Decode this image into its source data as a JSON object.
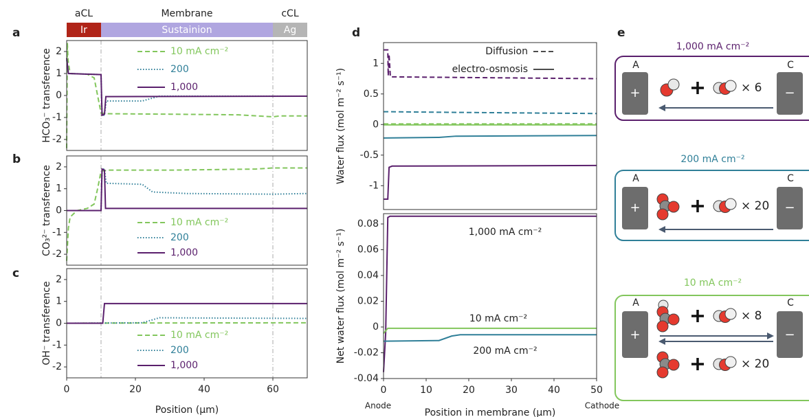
{
  "chart_data": [
    {
      "type": "line",
      "panel_label": "a",
      "y_label": "HCO₃⁻ transference",
      "xlim": [
        0,
        70
      ],
      "ylim": [
        -2.5,
        2.5
      ],
      "yticks": [
        -2,
        -1,
        0,
        1,
        2
      ],
      "legend": "upper center",
      "series": [
        {
          "name": "10 mA cm⁻²",
          "color": "#82c65c",
          "dash": "dashed",
          "x": [
            0,
            0.2,
            0.4,
            1,
            6,
            8,
            10,
            12,
            30,
            50,
            60,
            62,
            70
          ],
          "values": [
            -2.4,
            2.4,
            1.6,
            1.0,
            0.97,
            0.8,
            -0.8,
            -0.83,
            -0.85,
            -0.88,
            -0.97,
            -0.93,
            -0.93
          ]
        },
        {
          "name": "200",
          "color": "#2f7f98",
          "dash": "dotted",
          "x": [
            0,
            0.5,
            10,
            10.3,
            11,
            11.5,
            22,
            27,
            70
          ],
          "values": [
            1.6,
            1.0,
            0.95,
            -0.9,
            -0.9,
            -0.25,
            -0.25,
            -0.03,
            -0.03
          ]
        },
        {
          "name": "1,000",
          "color": "#5a1f6c",
          "dash": "solid",
          "x": [
            0,
            0.5,
            10,
            10.3,
            11,
            11.4,
            70
          ],
          "values": [
            1.7,
            1.0,
            0.95,
            -0.9,
            -0.85,
            -0.05,
            -0.03
          ]
        }
      ]
    },
    {
      "type": "line",
      "panel_label": "b",
      "y_label": "CO₃²⁻ transference",
      "xlim": [
        0,
        70
      ],
      "ylim": [
        -2.5,
        2.5
      ],
      "yticks": [
        -2,
        -1,
        0,
        1,
        2
      ],
      "legend": "lower center",
      "series": [
        {
          "name": "10 mA cm⁻²",
          "color": "#82c65c",
          "dash": "dashed",
          "x": [
            0,
            0.5,
            1,
            3,
            6,
            8,
            9,
            10,
            12,
            30,
            55,
            60,
            70
          ],
          "values": [
            -2.3,
            -0.8,
            -0.3,
            0,
            0.1,
            0.3,
            1.0,
            1.8,
            1.85,
            1.85,
            1.9,
            1.95,
            1.95
          ]
        },
        {
          "name": "200",
          "color": "#2f7f98",
          "dash": "dotted",
          "x": [
            0,
            10,
            10.3,
            11,
            11.5,
            22,
            25,
            35,
            60,
            70
          ],
          "values": [
            0,
            0,
            1.9,
            1.9,
            1.25,
            1.2,
            0.85,
            0.78,
            0.75,
            0.78
          ]
        },
        {
          "name": "1,000",
          "color": "#5a1f6c",
          "dash": "solid",
          "x": [
            0,
            10,
            10.3,
            11,
            11.3,
            70
          ],
          "values": [
            0,
            0,
            1.9,
            1.85,
            0.1,
            0.1
          ]
        }
      ]
    },
    {
      "type": "line",
      "panel_label": "c",
      "y_label": "OH⁻ transference",
      "x_label": "Position (μm)",
      "xlim": [
        0,
        70
      ],
      "xticks": [
        0,
        20,
        40,
        60
      ],
      "ylim": [
        -2.5,
        2.5
      ],
      "yticks": [
        -2,
        -1,
        0,
        1,
        2
      ],
      "legend": "lower center",
      "series": [
        {
          "name": "10 mA cm⁻²",
          "color": "#82c65c",
          "dash": "dashed",
          "x": [
            0,
            20,
            70
          ],
          "values": [
            0,
            0.01,
            0.02
          ]
        },
        {
          "name": "200",
          "color": "#2f7f98",
          "dash": "dotted",
          "x": [
            0,
            22,
            27,
            40,
            70
          ],
          "values": [
            0,
            0.02,
            0.25,
            0.24,
            0.22
          ]
        },
        {
          "name": "1,000",
          "color": "#5a1f6c",
          "dash": "solid",
          "x": [
            0,
            10.5,
            11,
            70
          ],
          "values": [
            0,
            0,
            0.9,
            0.9
          ]
        }
      ]
    },
    {
      "type": "line",
      "panel_label": "d",
      "y_label": "Water flux (mol m⁻² s⁻¹)",
      "xlim": [
        0,
        50
      ],
      "ylim": [
        -1.39,
        1.34
      ],
      "yticks": [
        -1,
        -0.5,
        0,
        0.5,
        1
      ],
      "legend": "upper right",
      "legend_entries": [
        {
          "label": "Diffusion",
          "dash": "dashed"
        },
        {
          "label": "electro-osmosis",
          "dash": "solid"
        }
      ],
      "series": [
        {
          "color": "#5a1f6c",
          "dash": "dashed",
          "x": [
            0,
            1,
            1.1,
            1.3,
            1.6,
            50
          ],
          "values": [
            1.22,
            1.22,
            0.8,
            1.15,
            0.78,
            0.75
          ]
        },
        {
          "color": "#2f7f98",
          "dash": "dashed",
          "x": [
            0,
            15,
            50
          ],
          "values": [
            0.21,
            0.2,
            0.18
          ]
        },
        {
          "color": "#82c65c",
          "dash": "dashed",
          "x": [
            0,
            50
          ],
          "values": [
            0.01,
            0.01
          ]
        },
        {
          "color": "#82c65c",
          "dash": "solid",
          "x": [
            0,
            50
          ],
          "values": [
            -0.005,
            -0.005
          ]
        },
        {
          "color": "#2f7f98",
          "dash": "solid",
          "x": [
            0,
            13,
            17,
            50
          ],
          "values": [
            -0.22,
            -0.21,
            -0.19,
            -0.18
          ]
        },
        {
          "color": "#5a1f6c",
          "dash": "solid",
          "x": [
            0,
            1,
            1.3,
            2,
            50
          ],
          "values": [
            -1.22,
            -1.22,
            -0.7,
            -0.68,
            -0.67
          ]
        }
      ]
    },
    {
      "type": "line",
      "y_label": "Net water flux (mol m⁻² s⁻¹)",
      "x_label": "Position in membrane (μm)",
      "x_end_labels": [
        "Anode",
        "Cathode"
      ],
      "xlim": [
        0,
        50
      ],
      "xticks": [
        0,
        10,
        20,
        30,
        40,
        50
      ],
      "ylim": [
        -0.04,
        0.088
      ],
      "yticks": [
        -0.04,
        -0.02,
        0,
        0.02,
        0.04,
        0.06,
        0.08
      ],
      "series": [
        {
          "label": "1,000 mA cm⁻²",
          "color": "#5a1f6c",
          "dash": "solid",
          "x": [
            0,
            0.5,
            1,
            1.5,
            50
          ],
          "values": [
            -0.035,
            -0.005,
            0.085,
            0.086,
            0.086
          ]
        },
        {
          "label": "10 mA cm⁻²",
          "color": "#82c65c",
          "dash": "solid",
          "x": [
            0,
            1,
            50
          ],
          "values": [
            -0.005,
            -0.001,
            -0.001
          ]
        },
        {
          "label": "200 mA cm⁻²",
          "color": "#2f7f98",
          "dash": "solid",
          "x": [
            0,
            13,
            16,
            18,
            50
          ],
          "values": [
            -0.011,
            -0.0105,
            -0.007,
            -0.006,
            -0.006
          ]
        }
      ]
    }
  ],
  "layers": [
    {
      "label": "aCL",
      "material": "Ir",
      "color": "#b02418",
      "range": [
        0,
        10
      ]
    },
    {
      "label": "Membrane",
      "material": "Sustainion",
      "color": "#b0a6e0",
      "range": [
        10,
        60
      ]
    },
    {
      "label": "cCL",
      "material": "Ag",
      "color": "#b5b5b5",
      "range": [
        60,
        70
      ]
    }
  ],
  "diagram": {
    "panel_label": "e",
    "boxes": [
      {
        "title": "1,000 mA cm⁻²",
        "anode": "A",
        "cathode": "C",
        "anode_sign": "+",
        "cathode_sign": "−",
        "multipliers": [
          "× 6"
        ]
      },
      {
        "title": "200 mA cm⁻²",
        "anode": "A",
        "cathode": "C",
        "anode_sign": "+",
        "cathode_sign": "−",
        "multipliers": [
          "× 20"
        ]
      },
      {
        "title": "10 mA cm⁻²",
        "anode": "A",
        "cathode": "C",
        "anode_sign": "+",
        "cathode_sign": "−",
        "multipliers": [
          "× 8",
          "× 20"
        ]
      }
    ]
  }
}
